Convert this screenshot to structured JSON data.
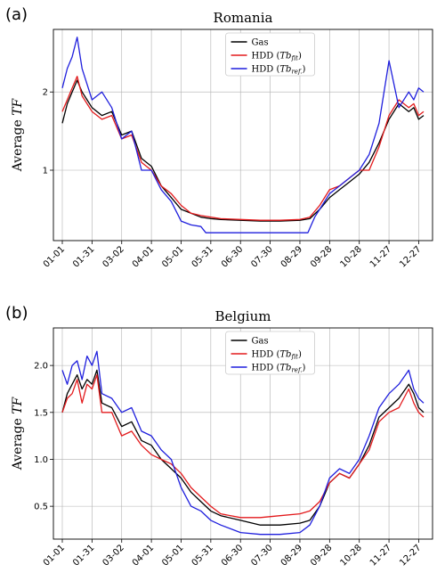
{
  "chart_data": [
    {
      "type": "line",
      "panel": "(a)",
      "title": "Romania",
      "ylabel": "Average TF",
      "ylabel_plain": "Average ",
      "ylabel_italic": "TF",
      "xlim": [
        0,
        365
      ],
      "ylim": [
        0.1,
        2.8
      ],
      "yticks": [
        1,
        2
      ],
      "yticklabels": [
        "1",
        "2"
      ],
      "grid": true,
      "legend_position": "top-center",
      "legend": [
        {
          "label": "Gas",
          "color": "#000000"
        },
        {
          "label": "HDD (Tbfit)",
          "color": "#e31a1c"
        },
        {
          "label": "HDD (Tbref.)",
          "color": "#1f1fdd"
        }
      ],
      "series": [
        {
          "name": "Gas",
          "color": "#000000",
          "x": [
            0,
            5,
            10,
            15,
            20,
            25,
            30,
            40,
            50,
            60,
            70,
            80,
            90,
            100,
            110,
            120,
            130,
            140,
            150,
            160,
            180,
            200,
            220,
            240,
            250,
            260,
            270,
            280,
            290,
            300,
            310,
            320,
            330,
            340,
            350,
            355,
            360,
            365
          ],
          "y": [
            1.6,
            1.85,
            2.0,
            2.15,
            2.0,
            1.9,
            1.8,
            1.7,
            1.75,
            1.45,
            1.5,
            1.15,
            1.05,
            0.8,
            0.65,
            0.5,
            0.45,
            0.4,
            0.38,
            0.37,
            0.36,
            0.35,
            0.35,
            0.36,
            0.38,
            0.5,
            0.65,
            0.75,
            0.85,
            0.95,
            1.1,
            1.35,
            1.65,
            1.85,
            1.75,
            1.8,
            1.65,
            1.7
          ]
        },
        {
          "name": "HDD (Tbfit)",
          "color": "#e31a1c",
          "x": [
            0,
            5,
            10,
            15,
            20,
            25,
            30,
            40,
            50,
            60,
            70,
            80,
            90,
            100,
            110,
            120,
            130,
            140,
            150,
            160,
            180,
            200,
            220,
            240,
            250,
            260,
            270,
            280,
            290,
            300,
            310,
            320,
            330,
            340,
            350,
            355,
            360,
            365
          ],
          "y": [
            1.75,
            1.9,
            2.05,
            2.2,
            1.95,
            1.85,
            1.75,
            1.65,
            1.7,
            1.4,
            1.45,
            1.1,
            1.0,
            0.8,
            0.7,
            0.55,
            0.45,
            0.42,
            0.4,
            0.38,
            0.37,
            0.36,
            0.36,
            0.37,
            0.4,
            0.55,
            0.75,
            0.8,
            0.9,
            1.0,
            1.0,
            1.3,
            1.7,
            1.9,
            1.8,
            1.85,
            1.7,
            1.75
          ]
        },
        {
          "name": "HDD (Tbref.)",
          "color": "#1f1fdd",
          "x": [
            0,
            5,
            10,
            15,
            20,
            25,
            30,
            40,
            50,
            60,
            70,
            80,
            90,
            100,
            110,
            120,
            130,
            140,
            145,
            150,
            160,
            180,
            200,
            220,
            240,
            248,
            255,
            260,
            270,
            280,
            290,
            300,
            310,
            320,
            330,
            340,
            350,
            355,
            360,
            365
          ],
          "y": [
            2.05,
            2.3,
            2.45,
            2.7,
            2.3,
            2.1,
            1.9,
            2.0,
            1.8,
            1.4,
            1.5,
            1.0,
            1.0,
            0.75,
            0.6,
            0.35,
            0.3,
            0.28,
            0.2,
            0.2,
            0.2,
            0.2,
            0.2,
            0.2,
            0.2,
            0.2,
            0.4,
            0.5,
            0.7,
            0.8,
            0.9,
            1.0,
            1.2,
            1.6,
            2.4,
            1.8,
            2.0,
            1.9,
            2.05,
            2.0
          ]
        }
      ]
    },
    {
      "type": "line",
      "panel": "(b)",
      "title": "Belgium",
      "ylabel": "Average TF",
      "ylabel_plain": "Average ",
      "ylabel_italic": "TF",
      "xlim": [
        0,
        365
      ],
      "ylim": [
        0.15,
        2.4
      ],
      "yticks": [
        0.5,
        1.0,
        1.5,
        2.0
      ],
      "yticklabels": [
        "0.5",
        "1.0",
        "1.5",
        "2.0"
      ],
      "grid": true,
      "legend_position": "top-center",
      "legend": [
        {
          "label": "Gas",
          "color": "#000000"
        },
        {
          "label": "HDD (Tbfit)",
          "color": "#e31a1c"
        },
        {
          "label": "HDD (Tbref.)",
          "color": "#1f1fdd"
        }
      ],
      "series": [
        {
          "name": "Gas",
          "color": "#000000",
          "x": [
            0,
            5,
            10,
            15,
            20,
            25,
            30,
            35,
            40,
            50,
            60,
            70,
            80,
            90,
            100,
            110,
            120,
            130,
            140,
            150,
            160,
            180,
            200,
            220,
            240,
            250,
            260,
            270,
            280,
            290,
            300,
            310,
            320,
            330,
            340,
            350,
            355,
            360,
            365
          ],
          "y": [
            1.5,
            1.7,
            1.8,
            1.9,
            1.75,
            1.85,
            1.8,
            1.95,
            1.6,
            1.55,
            1.35,
            1.4,
            1.2,
            1.15,
            1.0,
            0.9,
            0.8,
            0.65,
            0.55,
            0.45,
            0.4,
            0.35,
            0.3,
            0.3,
            0.32,
            0.35,
            0.5,
            0.75,
            0.85,
            0.8,
            0.95,
            1.15,
            1.45,
            1.55,
            1.65,
            1.8,
            1.7,
            1.55,
            1.5
          ]
        },
        {
          "name": "HDD (Tbfit)",
          "color": "#e31a1c",
          "x": [
            0,
            5,
            10,
            15,
            20,
            25,
            30,
            35,
            40,
            50,
            60,
            70,
            80,
            90,
            100,
            110,
            120,
            130,
            140,
            150,
            160,
            180,
            200,
            220,
            240,
            250,
            260,
            270,
            280,
            290,
            300,
            310,
            320,
            330,
            340,
            350,
            355,
            360,
            365
          ],
          "y": [
            1.5,
            1.65,
            1.7,
            1.85,
            1.6,
            1.8,
            1.75,
            1.9,
            1.5,
            1.5,
            1.25,
            1.3,
            1.15,
            1.05,
            1.0,
            0.95,
            0.85,
            0.7,
            0.6,
            0.5,
            0.42,
            0.38,
            0.38,
            0.4,
            0.42,
            0.45,
            0.55,
            0.75,
            0.85,
            0.8,
            0.95,
            1.1,
            1.4,
            1.5,
            1.55,
            1.75,
            1.6,
            1.5,
            1.45
          ]
        },
        {
          "name": "HDD (Tbref.)",
          "color": "#1f1fdd",
          "x": [
            0,
            5,
            10,
            15,
            20,
            25,
            30,
            35,
            40,
            50,
            60,
            70,
            80,
            90,
            100,
            110,
            120,
            130,
            140,
            150,
            160,
            180,
            200,
            220,
            240,
            250,
            260,
            270,
            280,
            290,
            300,
            310,
            320,
            330,
            340,
            350,
            355,
            360,
            365
          ],
          "y": [
            1.95,
            1.8,
            2.0,
            2.05,
            1.85,
            2.1,
            2.0,
            2.15,
            1.7,
            1.65,
            1.5,
            1.55,
            1.3,
            1.25,
            1.1,
            1.0,
            0.7,
            0.5,
            0.45,
            0.35,
            0.3,
            0.22,
            0.2,
            0.2,
            0.22,
            0.3,
            0.5,
            0.8,
            0.9,
            0.85,
            1.0,
            1.25,
            1.55,
            1.7,
            1.8,
            1.95,
            1.75,
            1.65,
            1.6
          ]
        }
      ]
    }
  ],
  "xtick_labels": [
    "01-01",
    "01-31",
    "03-02",
    "04-01",
    "05-01",
    "05-31",
    "06-30",
    "07-30",
    "08-29",
    "09-28",
    "10-28",
    "11-27",
    "12-27"
  ],
  "xtick_days": [
    0,
    30,
    60,
    90,
    120,
    150,
    180,
    210,
    240,
    270,
    300,
    330,
    360
  ]
}
